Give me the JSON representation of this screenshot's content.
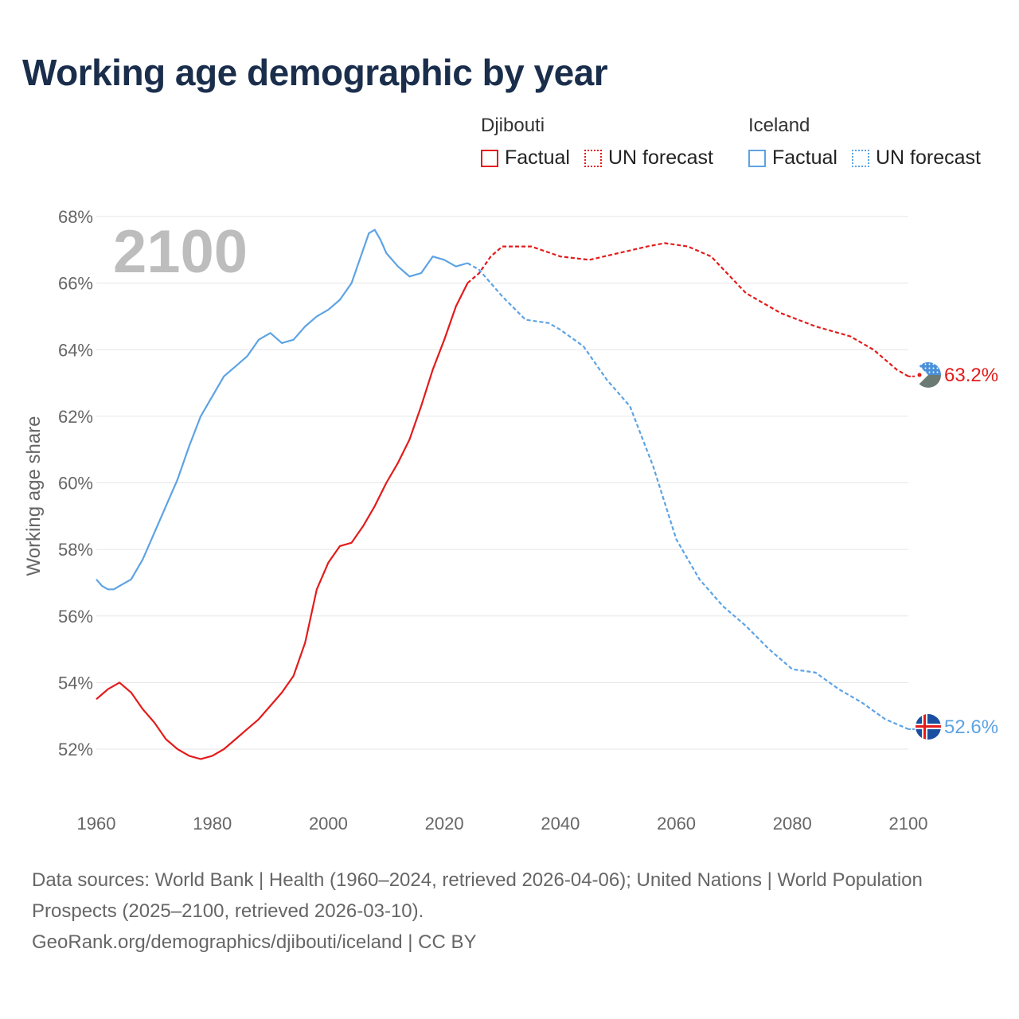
{
  "title": "Working age demographic by year",
  "legend": {
    "djibouti": {
      "country": "Djibouti",
      "factual": "Factual",
      "forecast": "UN forecast",
      "color": "#e31b1b"
    },
    "iceland": {
      "country": "Iceland",
      "factual": "Factual",
      "forecast": "UN forecast",
      "color": "#5da3e4"
    }
  },
  "footer": {
    "sources": "Data sources: World Bank | Health (1960–2024, retrieved 2026-04-06); United Nations | World Population Prospects (2025–2100, retrieved 2026-03-10).",
    "url": "GeoRank.org/demographics/djibouti/iceland | CC BY"
  },
  "chart_data": {
    "type": "line",
    "title": "Working age demographic by year",
    "ylabel": "Working age share",
    "xlabel": "",
    "year_watermark": "2100",
    "xlim": [
      1960,
      2100
    ],
    "ylim": [
      51,
      68
    ],
    "x_ticks": [
      1960,
      1980,
      2000,
      2020,
      2040,
      2060,
      2080,
      2100
    ],
    "y_ticks": [
      52,
      54,
      56,
      58,
      60,
      62,
      64,
      66,
      68
    ],
    "y_tick_labels": [
      "52%",
      "54%",
      "56%",
      "58%",
      "60%",
      "62%",
      "64%",
      "66%",
      "68%"
    ],
    "factual_range": [
      1960,
      2024
    ],
    "forecast_range": [
      2025,
      2100
    ],
    "series": [
      {
        "name": "Djibouti",
        "color": "#e31b1b",
        "end_label": "63.2%",
        "points": [
          [
            1960,
            53.5
          ],
          [
            1962,
            53.8
          ],
          [
            1964,
            54.0
          ],
          [
            1966,
            53.7
          ],
          [
            1968,
            53.2
          ],
          [
            1970,
            52.8
          ],
          [
            1972,
            52.3
          ],
          [
            1974,
            52.0
          ],
          [
            1976,
            51.8
          ],
          [
            1978,
            51.7
          ],
          [
            1980,
            51.8
          ],
          [
            1982,
            52.0
          ],
          [
            1984,
            52.3
          ],
          [
            1986,
            52.6
          ],
          [
            1988,
            52.9
          ],
          [
            1990,
            53.3
          ],
          [
            1992,
            53.7
          ],
          [
            1994,
            54.2
          ],
          [
            1996,
            55.2
          ],
          [
            1998,
            56.8
          ],
          [
            2000,
            57.6
          ],
          [
            2002,
            58.1
          ],
          [
            2004,
            58.2
          ],
          [
            2006,
            58.7
          ],
          [
            2008,
            59.3
          ],
          [
            2010,
            60.0
          ],
          [
            2012,
            60.6
          ],
          [
            2014,
            61.3
          ],
          [
            2016,
            62.3
          ],
          [
            2018,
            63.4
          ],
          [
            2020,
            64.3
          ],
          [
            2022,
            65.3
          ],
          [
            2024,
            66.0
          ],
          [
            2026,
            66.3
          ],
          [
            2028,
            66.8
          ],
          [
            2030,
            67.1
          ],
          [
            2035,
            67.1
          ],
          [
            2040,
            66.8
          ],
          [
            2045,
            66.7
          ],
          [
            2050,
            66.9
          ],
          [
            2055,
            67.1
          ],
          [
            2058,
            67.2
          ],
          [
            2062,
            67.1
          ],
          [
            2066,
            66.8
          ],
          [
            2072,
            65.7
          ],
          [
            2078,
            65.1
          ],
          [
            2084,
            64.7
          ],
          [
            2090,
            64.4
          ],
          [
            2094,
            64.0
          ],
          [
            2098,
            63.4
          ],
          [
            2100,
            63.2
          ]
        ]
      },
      {
        "name": "Iceland",
        "color": "#5da3e4",
        "end_label": "52.6%",
        "points": [
          [
            1960,
            57.1
          ],
          [
            1961,
            56.9
          ],
          [
            1962,
            56.8
          ],
          [
            1963,
            56.8
          ],
          [
            1964,
            56.9
          ],
          [
            1966,
            57.1
          ],
          [
            1968,
            57.7
          ],
          [
            1970,
            58.5
          ],
          [
            1972,
            59.3
          ],
          [
            1974,
            60.1
          ],
          [
            1976,
            61.1
          ],
          [
            1978,
            62.0
          ],
          [
            1980,
            62.6
          ],
          [
            1982,
            63.2
          ],
          [
            1984,
            63.5
          ],
          [
            1986,
            63.8
          ],
          [
            1988,
            64.3
          ],
          [
            1990,
            64.5
          ],
          [
            1992,
            64.2
          ],
          [
            1994,
            64.3
          ],
          [
            1996,
            64.7
          ],
          [
            1998,
            65.0
          ],
          [
            2000,
            65.2
          ],
          [
            2002,
            65.5
          ],
          [
            2004,
            66.0
          ],
          [
            2006,
            67.0
          ],
          [
            2007,
            67.5
          ],
          [
            2008,
            67.6
          ],
          [
            2009,
            67.3
          ],
          [
            2010,
            66.9
          ],
          [
            2012,
            66.5
          ],
          [
            2014,
            66.2
          ],
          [
            2016,
            66.3
          ],
          [
            2018,
            66.8
          ],
          [
            2020,
            66.7
          ],
          [
            2022,
            66.5
          ],
          [
            2024,
            66.6
          ],
          [
            2026,
            66.4
          ],
          [
            2030,
            65.6
          ],
          [
            2034,
            64.9
          ],
          [
            2038,
            64.8
          ],
          [
            2040,
            64.6
          ],
          [
            2044,
            64.1
          ],
          [
            2048,
            63.1
          ],
          [
            2052,
            62.3
          ],
          [
            2056,
            60.5
          ],
          [
            2060,
            58.3
          ],
          [
            2064,
            57.1
          ],
          [
            2068,
            56.3
          ],
          [
            2072,
            55.7
          ],
          [
            2076,
            55.0
          ],
          [
            2080,
            54.4
          ],
          [
            2084,
            54.3
          ],
          [
            2088,
            53.8
          ],
          [
            2092,
            53.4
          ],
          [
            2096,
            52.9
          ],
          [
            2100,
            52.6
          ]
        ]
      }
    ]
  }
}
